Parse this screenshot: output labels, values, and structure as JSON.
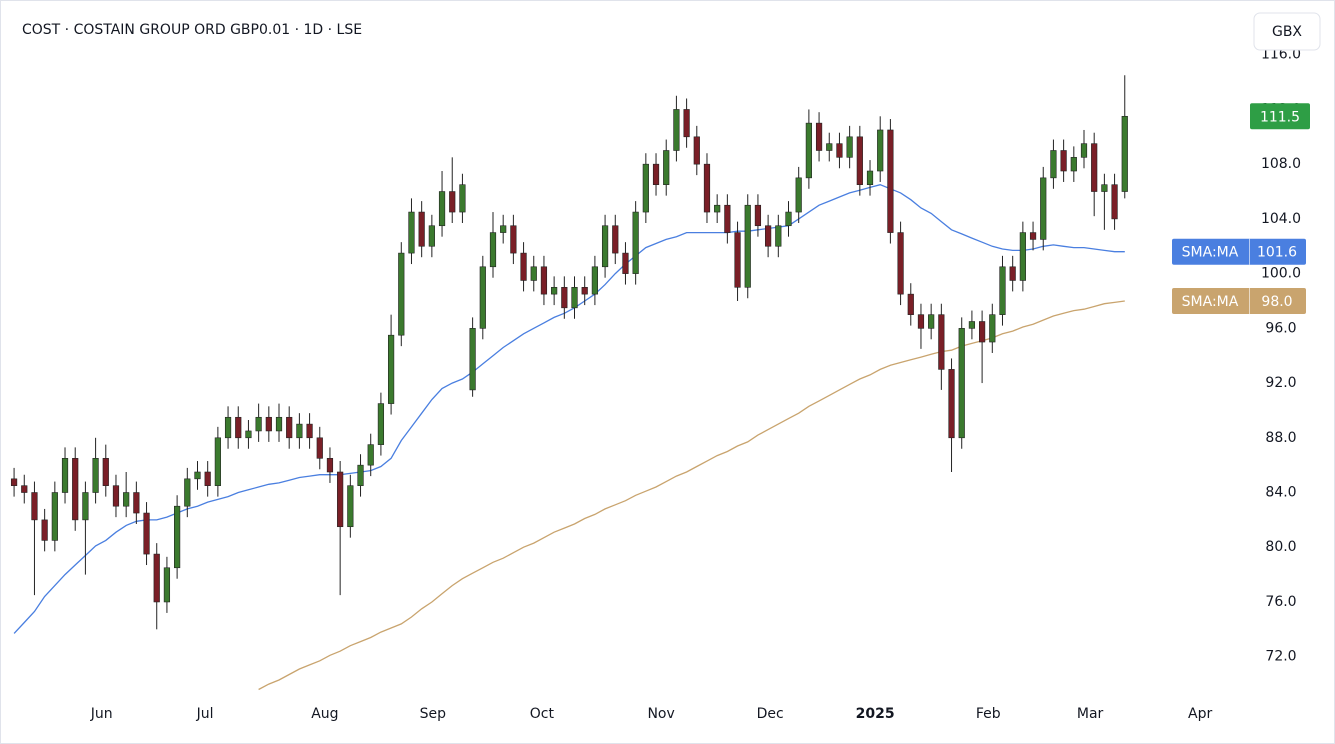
{
  "chart_data": {
    "type": "candlestick",
    "title": "COST · COSTAIN GROUP ORD GBP0.01 · 1D · LSE",
    "currency": "GBX",
    "up_color": "#3b7a2e",
    "down_color": "#7a1f27",
    "wick_color": "#222222",
    "close_color": "#2e9e45",
    "grid": false,
    "xlim": [
      -0.4,
      120.8
    ],
    "xticks": [
      {
        "value": 8.6,
        "label": "Jun"
      },
      {
        "value": 18.75,
        "label": "Jul"
      },
      {
        "value": 30.5,
        "label": "Aug"
      },
      {
        "value": 41.1,
        "label": "Sep"
      },
      {
        "value": 51.8,
        "label": "Oct"
      },
      {
        "value": 63.5,
        "label": "Nov"
      },
      {
        "value": 74.2,
        "label": "Dec"
      },
      {
        "value": 84.5,
        "label": "2025",
        "bold": true
      },
      {
        "value": 95.6,
        "label": "Feb"
      },
      {
        "value": 105.6,
        "label": "Mar"
      },
      {
        "value": 116.4,
        "label": "Apr"
      }
    ],
    "ylim": [
      69.2,
      120
    ],
    "yticks": [
      {
        "value": 72,
        "label": "72.0"
      },
      {
        "value": 76,
        "label": "76.0"
      },
      {
        "value": 80,
        "label": "80.0"
      },
      {
        "value": 84,
        "label": "84.0"
      },
      {
        "value": 88,
        "label": "88.0"
      },
      {
        "value": 92,
        "label": "92.0"
      },
      {
        "value": 96,
        "label": "96.0"
      },
      {
        "value": 100,
        "label": "100.0"
      },
      {
        "value": 104,
        "label": "104.0"
      },
      {
        "value": 108,
        "label": "108.0"
      },
      {
        "value": 112,
        "label": "112.0"
      },
      {
        "value": 116,
        "label": "116.0"
      }
    ],
    "open": [
      85,
      84.5,
      84,
      82,
      80.5,
      84,
      86.5,
      82,
      84,
      86.5,
      84.5,
      83,
      84,
      82.5,
      79.5,
      76,
      78.5,
      83,
      85,
      85.5,
      84.5,
      88,
      89.5,
      88,
      88.5,
      89.5,
      88.5,
      89.5,
      88,
      89,
      88,
      86.5,
      85.5,
      81.5,
      84.5,
      86,
      87.5,
      90.5,
      95.5,
      101.5,
      104.5,
      102,
      103.5,
      106,
      104.5,
      91.5,
      96,
      100.5,
      103,
      103.5,
      101.5,
      99.5,
      100.5,
      98.5,
      99,
      97.5,
      99,
      98.5,
      100.5,
      103.5,
      101.5,
      100,
      104.5,
      108,
      106.5,
      109,
      112,
      110,
      108,
      104.5,
      105,
      103,
      99,
      105,
      103.5,
      102,
      103.5,
      104.5,
      107,
      111,
      109,
      109.5,
      108.5,
      110,
      106.5,
      107.5,
      110.5,
      103,
      98.5,
      97,
      96,
      97,
      93,
      88,
      96,
      96.5,
      95,
      97,
      100.5,
      99.5,
      103,
      102.5,
      107,
      109,
      107.5,
      108.5,
      109.5,
      106,
      106.5,
      106
    ],
    "high": [
      85.8,
      85.3,
      84.8,
      82.8,
      84.8,
      87.3,
      87.3,
      84.8,
      88,
      87.5,
      85.3,
      85.5,
      84.8,
      83.3,
      80.3,
      79.3,
      83.8,
      85.8,
      86.3,
      86.3,
      88.8,
      90.3,
      90.3,
      89.3,
      90.5,
      90.3,
      90.5,
      90.3,
      89.8,
      89.8,
      88.8,
      87.3,
      86.3,
      85.3,
      86.8,
      88.3,
      91.3,
      97,
      102.3,
      105.5,
      105.3,
      104.3,
      107.5,
      108.5,
      107.3,
      96.8,
      101.3,
      104.5,
      104.3,
      104.3,
      102.3,
      101.3,
      101.3,
      99.8,
      99.8,
      99.8,
      99.8,
      101.3,
      104.3,
      104.3,
      102.3,
      105.3,
      108.8,
      108.8,
      109.8,
      113,
      112.8,
      110.8,
      108.8,
      105.8,
      105.8,
      103.8,
      105.8,
      105.8,
      104.3,
      104.3,
      105.3,
      107.8,
      112,
      111.8,
      110.3,
      110.3,
      110.8,
      110.8,
      108.3,
      111.5,
      111.3,
      103.8,
      99.3,
      97.8,
      97.8,
      97.8,
      93.8,
      96.8,
      97.3,
      97.3,
      97.8,
      101.3,
      101.3,
      103.8,
      103.8,
      107.8,
      109.8,
      109.8,
      109.3,
      110.5,
      110.3,
      107.3,
      107.3,
      114.5
    ],
    "low": [
      83.7,
      83.2,
      76.5,
      79.7,
      79.7,
      83.2,
      81.2,
      78,
      83.2,
      83.7,
      82.2,
      82.2,
      81.7,
      78.7,
      74,
      75.2,
      77.7,
      82.2,
      84.2,
      83.7,
      83.7,
      87.2,
      87.2,
      87.2,
      87.7,
      87.7,
      87.7,
      87.2,
      87.2,
      87.2,
      85.7,
      84.7,
      76.5,
      80.7,
      83.7,
      85.2,
      86.7,
      89.7,
      94.7,
      100.7,
      101.2,
      101.2,
      102.7,
      103.7,
      103.7,
      91,
      95.2,
      99.7,
      102.2,
      100.7,
      98.7,
      98.7,
      97.7,
      97.7,
      96.7,
      96.7,
      97.7,
      97.7,
      99.7,
      100.7,
      99.2,
      99.2,
      103.7,
      105.7,
      105.7,
      108.2,
      109.2,
      107.2,
      103.7,
      103.7,
      102.2,
      98,
      98.2,
      102.7,
      101.2,
      101.2,
      102.7,
      103.7,
      106.2,
      108.2,
      108.2,
      107.7,
      107.7,
      105.7,
      105.7,
      106.7,
      102.2,
      97.7,
      96.2,
      94.5,
      95.2,
      91.5,
      85.5,
      87.2,
      95.2,
      92,
      94.2,
      96.2,
      98.7,
      98.7,
      101.7,
      101.7,
      106.2,
      106.7,
      106.7,
      107.7,
      104.2,
      103.2,
      103.2,
      105.5
    ],
    "close": [
      84.5,
      84,
      82,
      80.5,
      84,
      86.5,
      82,
      84,
      86.5,
      84.5,
      83,
      84,
      82.5,
      79.5,
      76,
      78.5,
      83,
      85,
      85.5,
      84.5,
      88,
      89.5,
      88,
      88.5,
      89.5,
      88.5,
      89.5,
      88,
      89,
      88,
      86.5,
      85.5,
      81.5,
      84.5,
      86,
      87.5,
      90.5,
      95.5,
      101.5,
      104.5,
      102,
      103.5,
      106,
      104.5,
      106.5,
      96,
      100.5,
      103,
      103.5,
      101.5,
      99.5,
      100.5,
      98.5,
      99,
      97.5,
      99,
      98.5,
      100.5,
      103.5,
      101.5,
      100,
      104.5,
      108,
      106.5,
      109,
      112,
      110,
      108,
      104.5,
      105,
      103,
      99,
      105,
      103.5,
      102,
      103.5,
      104.5,
      107,
      111,
      109,
      109.5,
      108.5,
      110,
      106.5,
      107.5,
      110.5,
      103,
      98.5,
      97,
      96,
      97,
      93,
      88,
      96,
      96.5,
      95,
      97,
      100.5,
      99.5,
      103,
      102.5,
      107,
      109,
      107.5,
      108.5,
      109.5,
      106,
      106.5,
      104,
      111.5
    ],
    "series": [
      {
        "name": "SMA:MA",
        "color": "#4a7fe0",
        "last_label": "101.6",
        "values": [
          73.7,
          74.5,
          75.3,
          76.4,
          77.2,
          78,
          78.7,
          79.4,
          80.1,
          80.5,
          81.1,
          81.6,
          81.9,
          82,
          82,
          82.2,
          82.5,
          82.8,
          83,
          83.3,
          83.5,
          83.7,
          84,
          84.2,
          84.4,
          84.6,
          84.7,
          84.9,
          85.1,
          85.2,
          85.3,
          85.3,
          85.3,
          85.4,
          85.5,
          85.6,
          85.9,
          86.5,
          87.8,
          88.8,
          89.8,
          90.8,
          91.6,
          92,
          92.3,
          92.8,
          93.4,
          94,
          94.6,
          95.1,
          95.6,
          96,
          96.4,
          96.8,
          97.1,
          97.5,
          98,
          98.5,
          99.2,
          100,
          100.7,
          101.3,
          101.9,
          102.2,
          102.5,
          102.7,
          103,
          103,
          103,
          103,
          103,
          103.1,
          103.1,
          103.2,
          103.3,
          103.4,
          103.5,
          104,
          104.5,
          105,
          105.3,
          105.6,
          105.9,
          106.1,
          106.3,
          106.5,
          106.2,
          105.9,
          105.4,
          104.8,
          104.4,
          103.8,
          103.2,
          102.9,
          102.6,
          102.3,
          102,
          101.8,
          101.7,
          101.7,
          101.8,
          102,
          102.1,
          102,
          101.9,
          101.9,
          101.8,
          101.7,
          101.6,
          101.6
        ]
      },
      {
        "name": "SMA:MA",
        "color": "#c9a46e",
        "last_label": "98.0",
        "values": [
          null,
          null,
          null,
          null,
          null,
          null,
          null,
          null,
          null,
          null,
          null,
          null,
          null,
          null,
          null,
          null,
          null,
          null,
          null,
          null,
          null,
          null,
          null,
          null,
          69.6,
          70,
          70.3,
          70.7,
          71.1,
          71.4,
          71.7,
          72.1,
          72.4,
          72.8,
          73.1,
          73.4,
          73.8,
          74.1,
          74.4,
          74.9,
          75.5,
          76,
          76.6,
          77.2,
          77.7,
          78.1,
          78.5,
          78.9,
          79.2,
          79.6,
          80,
          80.3,
          80.7,
          81.1,
          81.4,
          81.7,
          82.1,
          82.4,
          82.8,
          83.1,
          83.4,
          83.8,
          84.1,
          84.4,
          84.8,
          85.2,
          85.5,
          85.9,
          86.3,
          86.7,
          87,
          87.4,
          87.7,
          88.2,
          88.6,
          89,
          89.4,
          89.8,
          90.3,
          90.7,
          91.1,
          91.5,
          91.9,
          92.3,
          92.6,
          93,
          93.3,
          93.5,
          93.7,
          93.9,
          94.1,
          94.3,
          94.4,
          94.7,
          94.9,
          95.1,
          95.3,
          95.6,
          95.8,
          96.1,
          96.3,
          96.6,
          96.9,
          97.1,
          97.3,
          97.4,
          97.6,
          97.8,
          97.9,
          98
        ]
      }
    ]
  }
}
